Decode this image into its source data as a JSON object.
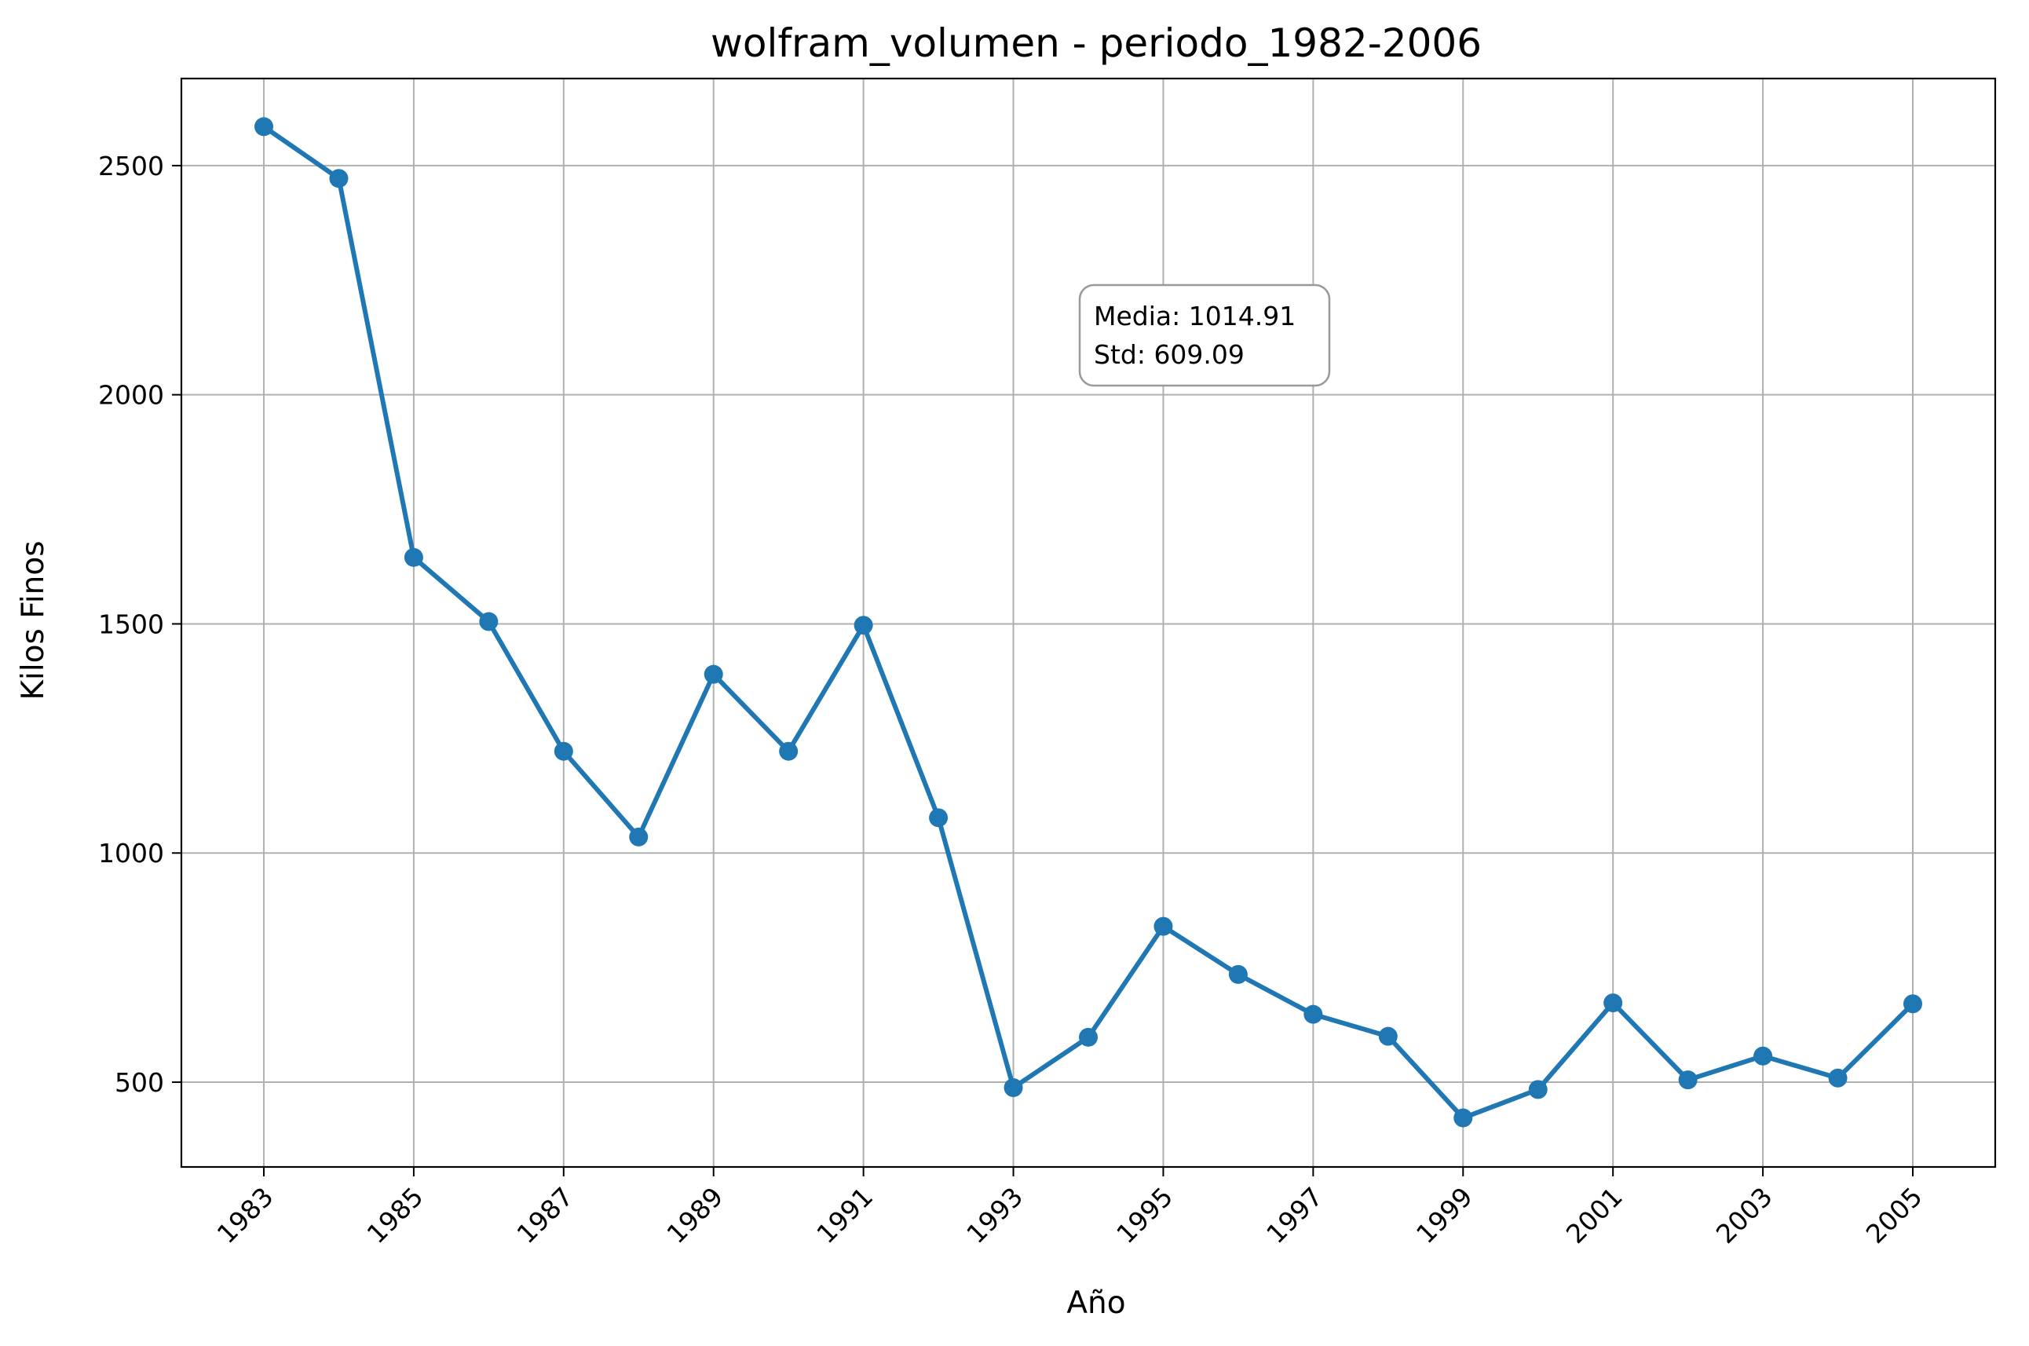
{
  "chart_data": {
    "type": "line",
    "title": "wolfram_volumen - periodo_1982-2006",
    "xlabel": "Año",
    "ylabel": "Kilos Finos",
    "x": [
      1983,
      1984,
      1985,
      1986,
      1987,
      1988,
      1989,
      1990,
      1991,
      1992,
      1993,
      1994,
      1995,
      1996,
      1997,
      1998,
      1999,
      2000,
      2001,
      2002,
      2003,
      2004,
      2005
    ],
    "series": [
      {
        "values": [
          2585,
          2472,
          1645,
          1505,
          1222,
          1035,
          1390,
          1222,
          1497,
          1077,
          488,
          598,
          840,
          735,
          648,
          600,
          422,
          484,
          673,
          505,
          557,
          509,
          671
        ],
        "color": "#1f77b4",
        "marker": "circle"
      }
    ],
    "xticks": [
      "1983",
      "1985",
      "1987",
      "1989",
      "1991",
      "1993",
      "1995",
      "1997",
      "1999",
      "2001",
      "2003",
      "2005"
    ],
    "yticks": [
      "500",
      "1000",
      "1500",
      "2000",
      "2500"
    ],
    "xlim": [
      1981.9,
      2006.1
    ],
    "ylim": [
      315,
      2690
    ],
    "grid": true,
    "annotation": {
      "line1": "Media: 1014.91",
      "line2": "Std: 609.09"
    }
  }
}
